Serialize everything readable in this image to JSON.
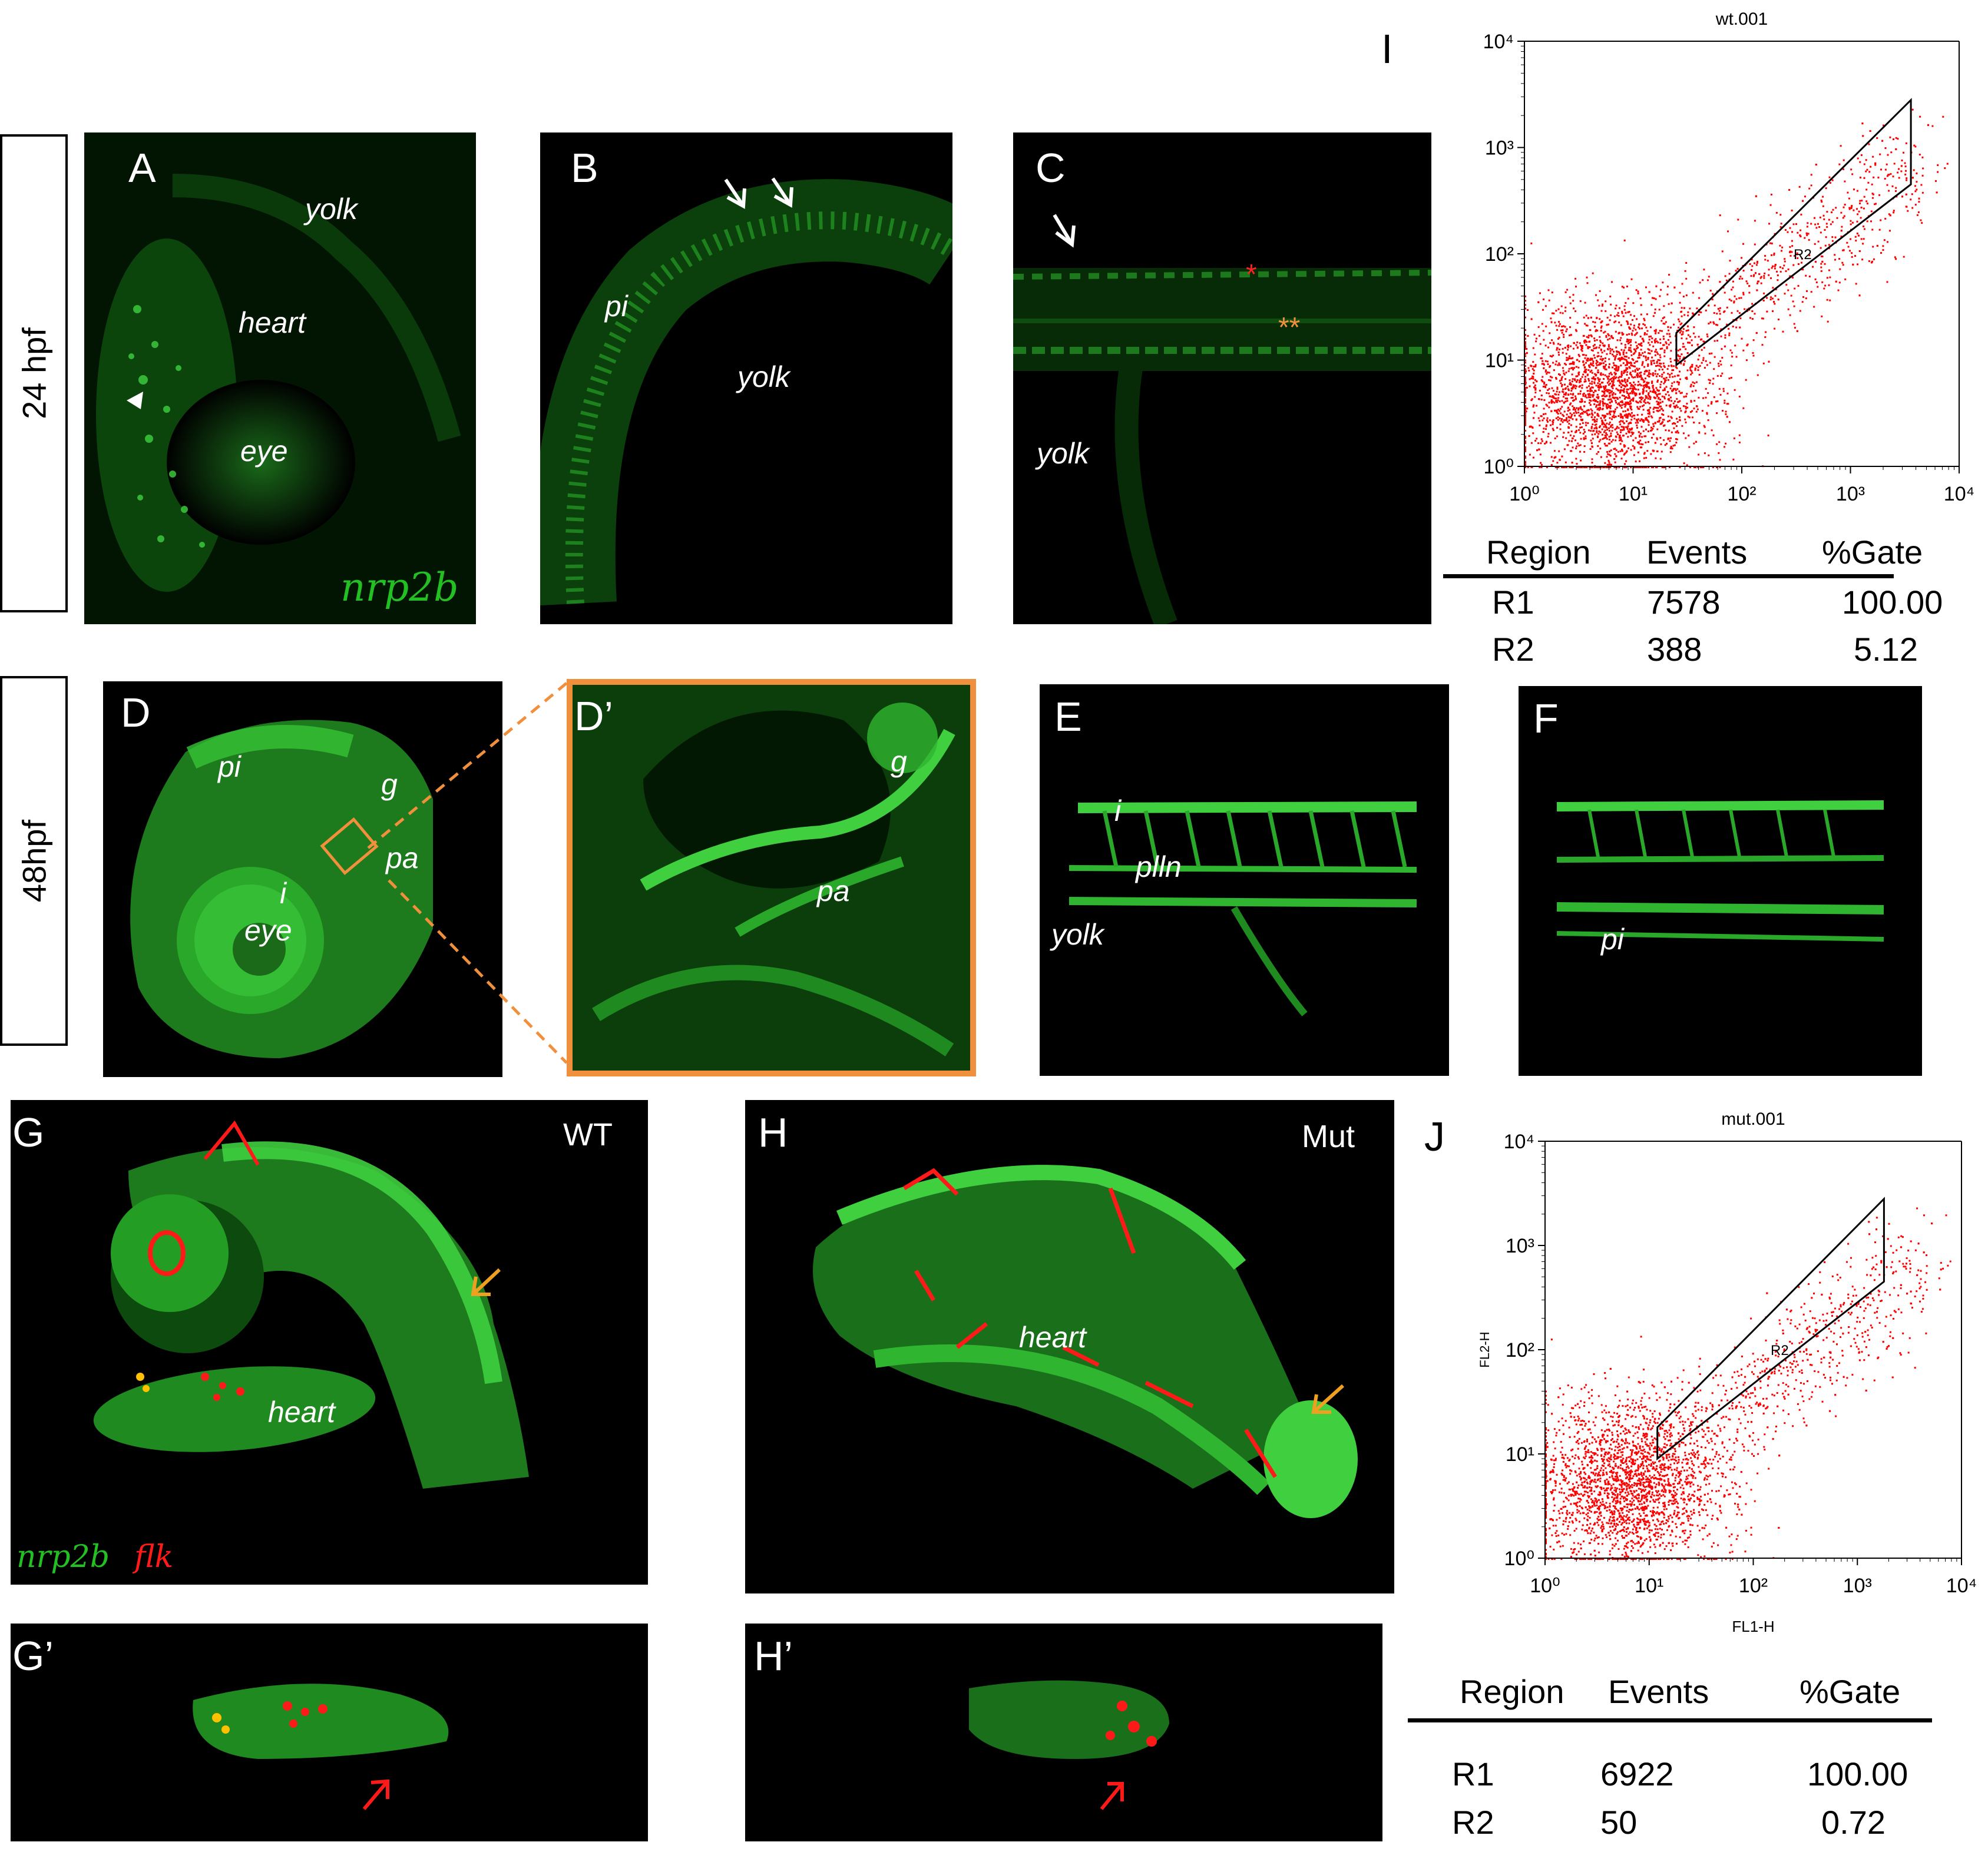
{
  "stages": {
    "s24": "24 hpf",
    "s48": "48hpf"
  },
  "panels": {
    "A": {
      "label": "A",
      "yolk": "yolk",
      "heart": "heart",
      "eye": "eye",
      "gene": "nrp2b"
    },
    "B": {
      "label": "B",
      "pi": "pi",
      "yolk": "yolk"
    },
    "C": {
      "label": "C",
      "star1": "*",
      "star2": "**",
      "yolk": "yolk"
    },
    "D": {
      "label": "D",
      "pi": "pi",
      "g": "g",
      "pa": "pa",
      "i": "i",
      "eye": "eye"
    },
    "Dp": {
      "label": "D’",
      "g": "g",
      "pa": "pa"
    },
    "E": {
      "label": "E",
      "i": "i",
      "plln": "plln",
      "yolk": "yolk"
    },
    "F": {
      "label": "F",
      "pi": "pi"
    },
    "G": {
      "label": "G",
      "wt": "WT",
      "heart": "heart",
      "gene1": "nrp2b",
      "gene2": "flk"
    },
    "H": {
      "label": "H",
      "mut": "Mut",
      "heart": "heart"
    },
    "Gp": {
      "label": "G’"
    },
    "Hp": {
      "label": "H’"
    }
  },
  "chart_data": [
    {
      "type": "scatter",
      "panel": "I",
      "title": "wt.001",
      "xlabel": "",
      "ylabel": "",
      "xscale": "log",
      "yscale": "log",
      "xlim": [
        1,
        10000
      ],
      "ylim": [
        1,
        10000
      ],
      "x_ticks": [
        "10⁰",
        "10¹",
        "10²",
        "10³",
        "10⁴"
      ],
      "y_ticks": [
        "10⁰",
        "10¹",
        "10²",
        "10³",
        "10⁴"
      ],
      "gate": {
        "name": "R2",
        "polygon": [
          [
            25,
            9
          ],
          [
            25,
            18
          ],
          [
            3600,
            2800
          ],
          [
            3600,
            450
          ]
        ]
      },
      "point_color": "#ff0000",
      "table": {
        "headers": [
          "Region",
          "Events",
          "%Gate"
        ],
        "rows": [
          [
            "R1",
            "7578",
            "100.00"
          ],
          [
            "R2",
            "388",
            "5.12"
          ]
        ]
      }
    },
    {
      "type": "scatter",
      "panel": "J",
      "title": "mut.001",
      "xlabel": "FL1-H",
      "ylabel": "FL2-H",
      "xscale": "log",
      "yscale": "log",
      "xlim": [
        1,
        10000
      ],
      "ylim": [
        1,
        10000
      ],
      "x_ticks": [
        "10⁰",
        "10¹",
        "10²",
        "10³",
        "10⁴"
      ],
      "y_ticks": [
        "10⁰",
        "10¹",
        "10²",
        "10³",
        "10⁴"
      ],
      "gate": {
        "name": "R2",
        "polygon": [
          [
            12,
            9
          ],
          [
            12,
            18
          ],
          [
            1800,
            2800
          ],
          [
            1800,
            450
          ]
        ]
      },
      "point_color": "#ff0000",
      "table": {
        "headers": [
          "Region",
          "Events",
          "%Gate"
        ],
        "rows": [
          [
            "R1",
            "6922",
            "100.00"
          ],
          [
            "R2",
            "50",
            "0.72"
          ]
        ]
      }
    }
  ],
  "colors": {
    "green": "#35c135",
    "red": "#ff1a1a",
    "orange": "#f0903c",
    "yellow": "#ffc000"
  }
}
